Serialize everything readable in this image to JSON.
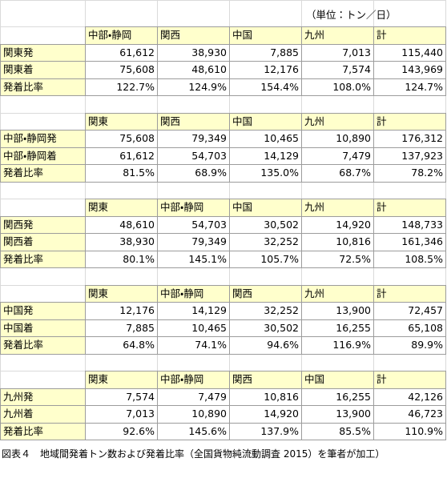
{
  "unit": "（単位：トン／日）",
  "tables": [
    {
      "columns": [
        "中部・静岡",
        "関西",
        "中国",
        "九州",
        "計"
      ],
      "rows": [
        {
          "label": "関東発",
          "cells": [
            "61,612",
            "38,930",
            "7,885",
            "7,013",
            "115,440"
          ]
        },
        {
          "label": "関東着",
          "cells": [
            "75,608",
            "48,610",
            "12,176",
            "7,574",
            "143,969"
          ]
        },
        {
          "label": "発着比率",
          "cells": [
            "122.7%",
            "124.9%",
            "154.4%",
            "108.0%",
            "124.7%"
          ]
        }
      ]
    },
    {
      "columns": [
        "関東",
        "関西",
        "中国",
        "九州",
        "計"
      ],
      "rows": [
        {
          "label": "中部・静岡発",
          "cells": [
            "75,608",
            "79,349",
            "10,465",
            "10,890",
            "176,312"
          ]
        },
        {
          "label": "中部・静岡着",
          "cells": [
            "61,612",
            "54,703",
            "14,129",
            "7,479",
            "137,923"
          ]
        },
        {
          "label": "発着比率",
          "cells": [
            "81.5%",
            "68.9%",
            "135.0%",
            "68.7%",
            "78.2%"
          ]
        }
      ]
    },
    {
      "columns": [
        "関東",
        "中部・静岡",
        "中国",
        "九州",
        "計"
      ],
      "rows": [
        {
          "label": "関西発",
          "cells": [
            "48,610",
            "54,703",
            "30,502",
            "14,920",
            "148,733"
          ]
        },
        {
          "label": "関西着",
          "cells": [
            "38,930",
            "79,349",
            "32,252",
            "10,816",
            "161,346"
          ]
        },
        {
          "label": "発着比率",
          "cells": [
            "80.1%",
            "145.1%",
            "105.7%",
            "72.5%",
            "108.5%"
          ]
        }
      ]
    },
    {
      "columns": [
        "関東",
        "中部・静岡",
        "関西",
        "九州",
        "計"
      ],
      "rows": [
        {
          "label": "中国発",
          "cells": [
            "12,176",
            "14,129",
            "32,252",
            "13,900",
            "72,457"
          ]
        },
        {
          "label": "中国着",
          "cells": [
            "7,885",
            "10,465",
            "30,502",
            "16,255",
            "65,108"
          ]
        },
        {
          "label": "発着比率",
          "cells": [
            "64.8%",
            "74.1%",
            "94.6%",
            "116.9%",
            "89.9%"
          ]
        }
      ]
    },
    {
      "columns": [
        "関東",
        "中部・静岡",
        "関西",
        "中国",
        "計"
      ],
      "rows": [
        {
          "label": "九州発",
          "cells": [
            "7,574",
            "7,479",
            "10,816",
            "16,255",
            "42,126"
          ]
        },
        {
          "label": "九州着",
          "cells": [
            "7,013",
            "10,890",
            "14,920",
            "13,900",
            "46,723"
          ]
        },
        {
          "label": "発着比率",
          "cells": [
            "92.6%",
            "145.6%",
            "137.9%",
            "85.5%",
            "110.9%"
          ]
        }
      ]
    }
  ],
  "caption": "図表４　地域間発着トン数および発着比率（全国貨物純流動調査 2015）を筆者が加工）"
}
